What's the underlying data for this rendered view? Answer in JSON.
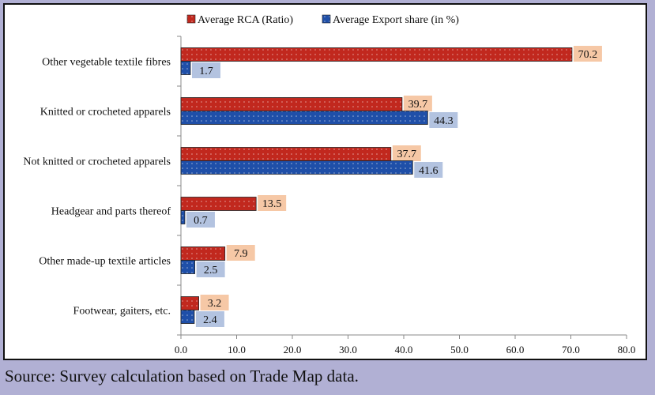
{
  "chart_data": {
    "type": "bar",
    "orientation": "horizontal",
    "categories": [
      "Other vegetable textile fibres",
      "Knitted or crocheted apparels",
      "Not knitted or crocheted apparels",
      "Headgear and parts thereof",
      "Other made-up textile articles",
      "Footwear, gaiters, etc."
    ],
    "series": [
      {
        "name": "Average RCA (Ratio)",
        "values": [
          70.2,
          39.7,
          37.7,
          13.5,
          7.9,
          3.2
        ],
        "color": "#c1281e",
        "label_bg": "#f6c8a6"
      },
      {
        "name": "Average Export share (in %)",
        "values": [
          1.7,
          44.3,
          41.6,
          0.7,
          2.5,
          2.4
        ],
        "color": "#1f4fa8",
        "label_bg": "#b3c3e0"
      }
    ],
    "xlim": [
      0,
      80
    ],
    "xticks": [
      "0.0",
      "10.0",
      "20.0",
      "30.0",
      "40.0",
      "50.0",
      "60.0",
      "70.0",
      "80.0"
    ],
    "legend_position": "top",
    "grid": false
  },
  "source": "Source: Survey calculation based on Trade Map data."
}
